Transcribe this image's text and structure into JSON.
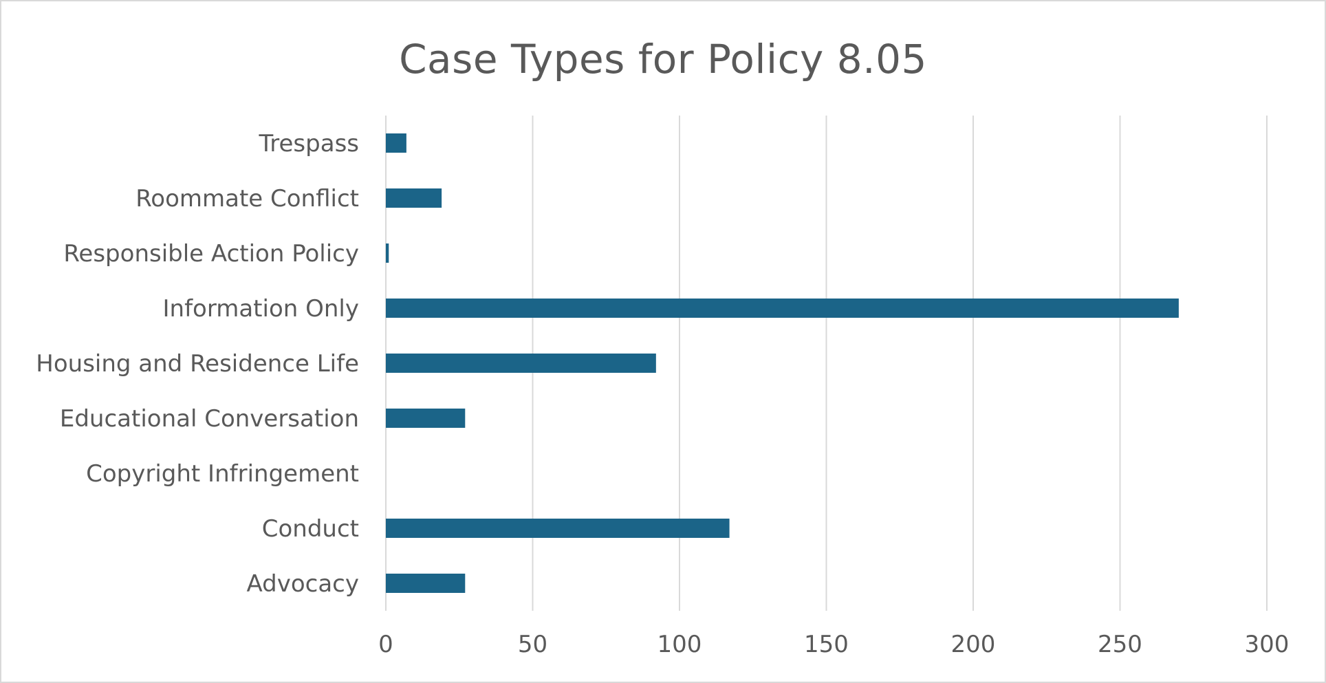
{
  "chart_data": {
    "type": "bar",
    "orientation": "horizontal",
    "title": "Case Types for Policy 8.05",
    "xlabel": "",
    "ylabel": "",
    "categories": [
      "Advocacy",
      "Conduct",
      "Copyright Infringement",
      "Educational Conversation",
      "Housing and Residence Life",
      "Information Only",
      "Responsible Action Policy",
      "Roommate Conflict",
      "Trespass"
    ],
    "values": [
      27,
      117,
      0,
      27,
      92,
      270,
      1,
      19,
      7
    ],
    "xlim": [
      0,
      300
    ],
    "xticks": [
      "0",
      "50",
      "100",
      "150",
      "200",
      "250",
      "300"
    ],
    "grid": "vertical",
    "legend": "none",
    "bar_color": "#1b6488",
    "grid_color": "#d9d9d9",
    "text_color": "#595959"
  }
}
